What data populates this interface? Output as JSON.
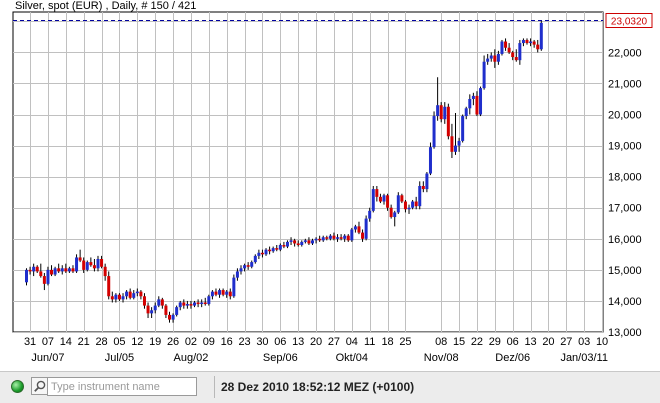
{
  "header": {
    "title": "Silver, spot (EUR) , Daily, # 150 / 421"
  },
  "status_bar": {
    "search_placeholder": "Type instrument name",
    "datetime": "28 Dez 2010 18:52:12  MEZ (+0100)"
  },
  "colors": {
    "up": "#1f2ecc",
    "down": "#d40000",
    "wick": "#000000",
    "frame": "#000000",
    "grid": "#c0c0c0",
    "current_line": "#0000a0",
    "price_tag_border": "#cc0000",
    "price_tag_text": "#cc0000"
  },
  "chart_data": {
    "type": "candlestick",
    "ylim": [
      13000,
      23300
    ],
    "yticks": [
      13000,
      14000,
      15000,
      16000,
      17000,
      18000,
      19000,
      20000,
      21000,
      22000,
      23000
    ],
    "ytick_labels": [
      "13,000",
      "14,000",
      "15,000",
      "16,000",
      "17,000",
      "18,000",
      "19,000",
      "20,000",
      "21,000",
      "22,000",
      "23,000"
    ],
    "current_value": 23032.0,
    "current_value_label": "23,0320",
    "xticks": [
      "31",
      "07",
      "14",
      "21",
      "28",
      "05",
      "12",
      "19",
      "26",
      "02",
      "09",
      "16",
      "23",
      "30",
      "06",
      "13",
      "20",
      "27",
      "04",
      "11",
      "18",
      "25",
      "08",
      "15",
      "22",
      "29",
      "06",
      "13",
      "20",
      "27",
      "03",
      "10"
    ],
    "xtick_positions": [
      1,
      6,
      11,
      16,
      21,
      26,
      31,
      36,
      41,
      46,
      51,
      56,
      61,
      66,
      71,
      76,
      81,
      86,
      91,
      96,
      101,
      106,
      116,
      121,
      126,
      131,
      136,
      141,
      146,
      151,
      156,
      161
    ],
    "month_labels": [
      "Jun/07",
      "Jul/05",
      "Aug/02",
      "Sep/06",
      "Okt/04",
      "Nov/08",
      "Dez/06",
      "Jan/03/11"
    ],
    "month_label_positions": [
      6,
      26,
      46,
      71,
      91,
      116,
      136,
      156
    ],
    "grid": true,
    "candles": [
      {
        "o": 14600,
        "h": 15050,
        "l": 14500,
        "c": 15000
      },
      {
        "o": 15000,
        "h": 15100,
        "l": 14850,
        "c": 14950
      },
      {
        "o": 14950,
        "h": 15200,
        "l": 14800,
        "c": 15100
      },
      {
        "o": 15100,
        "h": 15150,
        "l": 14900,
        "c": 14950
      },
      {
        "o": 14950,
        "h": 15200,
        "l": 14750,
        "c": 14800
      },
      {
        "o": 14800,
        "h": 14900,
        "l": 14350,
        "c": 14550
      },
      {
        "o": 14550,
        "h": 15100,
        "l": 14500,
        "c": 15000
      },
      {
        "o": 15000,
        "h": 15150,
        "l": 14800,
        "c": 14850
      },
      {
        "o": 14850,
        "h": 15100,
        "l": 14800,
        "c": 15050
      },
      {
        "o": 15050,
        "h": 15200,
        "l": 14900,
        "c": 14950
      },
      {
        "o": 14950,
        "h": 15150,
        "l": 14850,
        "c": 15050
      },
      {
        "o": 15050,
        "h": 15200,
        "l": 14900,
        "c": 14950
      },
      {
        "o": 14950,
        "h": 15100,
        "l": 14900,
        "c": 15050
      },
      {
        "o": 15050,
        "h": 15150,
        "l": 14900,
        "c": 14950
      },
      {
        "o": 14950,
        "h": 15500,
        "l": 14900,
        "c": 15400
      },
      {
        "o": 15400,
        "h": 15650,
        "l": 15250,
        "c": 15300
      },
      {
        "o": 15300,
        "h": 15400,
        "l": 14900,
        "c": 15000
      },
      {
        "o": 15000,
        "h": 15300,
        "l": 14950,
        "c": 15250
      },
      {
        "o": 15250,
        "h": 15400,
        "l": 15100,
        "c": 15150
      },
      {
        "o": 15150,
        "h": 15350,
        "l": 14950,
        "c": 15050
      },
      {
        "o": 15050,
        "h": 15450,
        "l": 14950,
        "c": 15350
      },
      {
        "o": 15350,
        "h": 15450,
        "l": 15050,
        "c": 15100
      },
      {
        "o": 15100,
        "h": 15200,
        "l": 14650,
        "c": 14800
      },
      {
        "o": 14800,
        "h": 14950,
        "l": 14050,
        "c": 14150
      },
      {
        "o": 14150,
        "h": 14300,
        "l": 13950,
        "c": 14050
      },
      {
        "o": 14050,
        "h": 14250,
        "l": 13950,
        "c": 14200
      },
      {
        "o": 14200,
        "h": 14250,
        "l": 14000,
        "c": 14050
      },
      {
        "o": 14050,
        "h": 14250,
        "l": 13950,
        "c": 14150
      },
      {
        "o": 14150,
        "h": 14350,
        "l": 14050,
        "c": 14300
      },
      {
        "o": 14300,
        "h": 14400,
        "l": 14050,
        "c": 14100
      },
      {
        "o": 14100,
        "h": 14350,
        "l": 14050,
        "c": 14250
      },
      {
        "o": 14250,
        "h": 14400,
        "l": 14150,
        "c": 14300
      },
      {
        "o": 14300,
        "h": 14350,
        "l": 14050,
        "c": 14150
      },
      {
        "o": 14150,
        "h": 14250,
        "l": 13750,
        "c": 13850
      },
      {
        "o": 13850,
        "h": 13950,
        "l": 13450,
        "c": 13600
      },
      {
        "o": 13600,
        "h": 13800,
        "l": 13450,
        "c": 13700
      },
      {
        "o": 13700,
        "h": 13950,
        "l": 13600,
        "c": 13850
      },
      {
        "o": 13850,
        "h": 14150,
        "l": 13800,
        "c": 14050
      },
      {
        "o": 14050,
        "h": 14100,
        "l": 13750,
        "c": 13850
      },
      {
        "o": 13850,
        "h": 13900,
        "l": 13450,
        "c": 13550
      },
      {
        "o": 13550,
        "h": 13650,
        "l": 13300,
        "c": 13400
      },
      {
        "o": 13400,
        "h": 13600,
        "l": 13300,
        "c": 13550
      },
      {
        "o": 13550,
        "h": 13850,
        "l": 13500,
        "c": 13800
      },
      {
        "o": 13800,
        "h": 14000,
        "l": 13700,
        "c": 13950
      },
      {
        "o": 13950,
        "h": 14050,
        "l": 13750,
        "c": 13850
      },
      {
        "o": 13850,
        "h": 14000,
        "l": 13750,
        "c": 13900
      },
      {
        "o": 13900,
        "h": 14000,
        "l": 13750,
        "c": 13850
      },
      {
        "o": 13850,
        "h": 14000,
        "l": 13800,
        "c": 13950
      },
      {
        "o": 13950,
        "h": 14050,
        "l": 13800,
        "c": 13900
      },
      {
        "o": 13900,
        "h": 14050,
        "l": 13800,
        "c": 13950
      },
      {
        "o": 13950,
        "h": 14100,
        "l": 13850,
        "c": 13900
      },
      {
        "o": 13900,
        "h": 14200,
        "l": 13850,
        "c": 14150
      },
      {
        "o": 14150,
        "h": 14350,
        "l": 14050,
        "c": 14300
      },
      {
        "o": 14300,
        "h": 14400,
        "l": 14150,
        "c": 14200
      },
      {
        "o": 14200,
        "h": 14400,
        "l": 14100,
        "c": 14350
      },
      {
        "o": 14350,
        "h": 14400,
        "l": 14150,
        "c": 14200
      },
      {
        "o": 14200,
        "h": 14350,
        "l": 14100,
        "c": 14300
      },
      {
        "o": 14300,
        "h": 14400,
        "l": 14050,
        "c": 14150
      },
      {
        "o": 14150,
        "h": 14850,
        "l": 14100,
        "c": 14750
      },
      {
        "o": 14750,
        "h": 15050,
        "l": 14650,
        "c": 14950
      },
      {
        "o": 14950,
        "h": 15150,
        "l": 14850,
        "c": 15050
      },
      {
        "o": 15050,
        "h": 15200,
        "l": 14950,
        "c": 15150
      },
      {
        "o": 15150,
        "h": 15250,
        "l": 15000,
        "c": 15100
      },
      {
        "o": 15100,
        "h": 15300,
        "l": 15050,
        "c": 15250
      },
      {
        "o": 15250,
        "h": 15500,
        "l": 15200,
        "c": 15450
      },
      {
        "o": 15450,
        "h": 15650,
        "l": 15350,
        "c": 15550
      },
      {
        "o": 15550,
        "h": 15650,
        "l": 15400,
        "c": 15500
      },
      {
        "o": 15500,
        "h": 15700,
        "l": 15450,
        "c": 15650
      },
      {
        "o": 15650,
        "h": 15750,
        "l": 15500,
        "c": 15600
      },
      {
        "o": 15600,
        "h": 15750,
        "l": 15550,
        "c": 15700
      },
      {
        "o": 15700,
        "h": 15800,
        "l": 15600,
        "c": 15650
      },
      {
        "o": 15650,
        "h": 15850,
        "l": 15600,
        "c": 15800
      },
      {
        "o": 15800,
        "h": 15900,
        "l": 15700,
        "c": 15750
      },
      {
        "o": 15750,
        "h": 15950,
        "l": 15700,
        "c": 15900
      },
      {
        "o": 15900,
        "h": 16050,
        "l": 15800,
        "c": 15950
      },
      {
        "o": 15950,
        "h": 16000,
        "l": 15750,
        "c": 15850
      },
      {
        "o": 15850,
        "h": 15950,
        "l": 15750,
        "c": 15800
      },
      {
        "o": 15800,
        "h": 15950,
        "l": 15750,
        "c": 15900
      },
      {
        "o": 15900,
        "h": 16000,
        "l": 15850,
        "c": 15950
      },
      {
        "o": 15950,
        "h": 16050,
        "l": 15800,
        "c": 15850
      },
      {
        "o": 15850,
        "h": 16000,
        "l": 15800,
        "c": 15950
      },
      {
        "o": 15950,
        "h": 16050,
        "l": 15850,
        "c": 16000
      },
      {
        "o": 16000,
        "h": 16100,
        "l": 15900,
        "c": 15950
      },
      {
        "o": 15950,
        "h": 16100,
        "l": 15900,
        "c": 16050
      },
      {
        "o": 16050,
        "h": 16100,
        "l": 15950,
        "c": 16000
      },
      {
        "o": 16000,
        "h": 16150,
        "l": 15950,
        "c": 16100
      },
      {
        "o": 16100,
        "h": 16200,
        "l": 15950,
        "c": 16000
      },
      {
        "o": 16000,
        "h": 16150,
        "l": 15900,
        "c": 16050
      },
      {
        "o": 16050,
        "h": 16150,
        "l": 15950,
        "c": 16000
      },
      {
        "o": 16000,
        "h": 16150,
        "l": 15900,
        "c": 16100
      },
      {
        "o": 16100,
        "h": 16150,
        "l": 15900,
        "c": 15950
      },
      {
        "o": 15950,
        "h": 16350,
        "l": 15900,
        "c": 16300
      },
      {
        "o": 16300,
        "h": 16450,
        "l": 16200,
        "c": 16400
      },
      {
        "o": 16400,
        "h": 16550,
        "l": 16150,
        "c": 16200
      },
      {
        "o": 16200,
        "h": 16300,
        "l": 15900,
        "c": 16000
      },
      {
        "o": 16000,
        "h": 16750,
        "l": 15950,
        "c": 16650
      },
      {
        "o": 16650,
        "h": 17000,
        "l": 16550,
        "c": 16900
      },
      {
        "o": 16900,
        "h": 17700,
        "l": 16850,
        "c": 17600
      },
      {
        "o": 17600,
        "h": 17700,
        "l": 17200,
        "c": 17350
      },
      {
        "o": 17350,
        "h": 17450,
        "l": 17150,
        "c": 17200
      },
      {
        "o": 17200,
        "h": 17450,
        "l": 17100,
        "c": 17400
      },
      {
        "o": 17400,
        "h": 17450,
        "l": 16900,
        "c": 17000
      },
      {
        "o": 17000,
        "h": 17100,
        "l": 16650,
        "c": 16700
      },
      {
        "o": 16700,
        "h": 16900,
        "l": 16400,
        "c": 16850
      },
      {
        "o": 16850,
        "h": 17500,
        "l": 16800,
        "c": 17400
      },
      {
        "o": 17400,
        "h": 17450,
        "l": 17150,
        "c": 17200
      },
      {
        "o": 17200,
        "h": 17250,
        "l": 16850,
        "c": 16950
      },
      {
        "o": 16950,
        "h": 17100,
        "l": 16800,
        "c": 17000
      },
      {
        "o": 17000,
        "h": 17250,
        "l": 16950,
        "c": 17200
      },
      {
        "o": 17200,
        "h": 17350,
        "l": 16950,
        "c": 17050
      },
      {
        "o": 17050,
        "h": 17850,
        "l": 16950,
        "c": 17700
      },
      {
        "o": 17700,
        "h": 17850,
        "l": 17500,
        "c": 17600
      },
      {
        "o": 17600,
        "h": 18150,
        "l": 17500,
        "c": 18100
      },
      {
        "o": 18100,
        "h": 19100,
        "l": 18050,
        "c": 18950
      },
      {
        "o": 18950,
        "h": 20100,
        "l": 18900,
        "c": 19950
      },
      {
        "o": 19950,
        "h": 21200,
        "l": 19800,
        "c": 20300
      },
      {
        "o": 20300,
        "h": 20400,
        "l": 19750,
        "c": 19850
      },
      {
        "o": 19850,
        "h": 20400,
        "l": 19700,
        "c": 20250
      },
      {
        "o": 20250,
        "h": 20350,
        "l": 19200,
        "c": 19300
      },
      {
        "o": 19300,
        "h": 19700,
        "l": 18600,
        "c": 18800
      },
      {
        "o": 18800,
        "h": 20050,
        "l": 18700,
        "c": 19000
      },
      {
        "o": 19000,
        "h": 19250,
        "l": 18800,
        "c": 19150
      },
      {
        "o": 19150,
        "h": 20000,
        "l": 19100,
        "c": 19950
      },
      {
        "o": 19950,
        "h": 20250,
        "l": 19850,
        "c": 20200
      },
      {
        "o": 20200,
        "h": 20650,
        "l": 20000,
        "c": 20500
      },
      {
        "o": 20500,
        "h": 20700,
        "l": 20300,
        "c": 20600
      },
      {
        "o": 20600,
        "h": 20750,
        "l": 19950,
        "c": 20000
      },
      {
        "o": 20000,
        "h": 20900,
        "l": 19950,
        "c": 20850
      },
      {
        "o": 20850,
        "h": 21900,
        "l": 20800,
        "c": 21700
      },
      {
        "o": 21700,
        "h": 21950,
        "l": 21600,
        "c": 21800
      },
      {
        "o": 21800,
        "h": 22000,
        "l": 21700,
        "c": 21900
      },
      {
        "o": 21900,
        "h": 22100,
        "l": 21500,
        "c": 21700
      },
      {
        "o": 21700,
        "h": 22050,
        "l": 21600,
        "c": 21950
      },
      {
        "o": 21950,
        "h": 22400,
        "l": 21900,
        "c": 22350
      },
      {
        "o": 22350,
        "h": 22450,
        "l": 22050,
        "c": 22150
      },
      {
        "o": 22150,
        "h": 22300,
        "l": 21950,
        "c": 22000
      },
      {
        "o": 22000,
        "h": 22050,
        "l": 21750,
        "c": 21850
      },
      {
        "o": 21850,
        "h": 22100,
        "l": 21700,
        "c": 21750
      },
      {
        "o": 21750,
        "h": 22400,
        "l": 21600,
        "c": 22300
      },
      {
        "o": 22300,
        "h": 22450,
        "l": 22200,
        "c": 22400
      },
      {
        "o": 22400,
        "h": 22450,
        "l": 22250,
        "c": 22300
      },
      {
        "o": 22300,
        "h": 22450,
        "l": 22200,
        "c": 22350
      },
      {
        "o": 22350,
        "h": 22400,
        "l": 22150,
        "c": 22250
      },
      {
        "o": 22250,
        "h": 22400,
        "l": 22000,
        "c": 22100
      },
      {
        "o": 22100,
        "h": 23030,
        "l": 22050,
        "c": 22950
      }
    ]
  }
}
